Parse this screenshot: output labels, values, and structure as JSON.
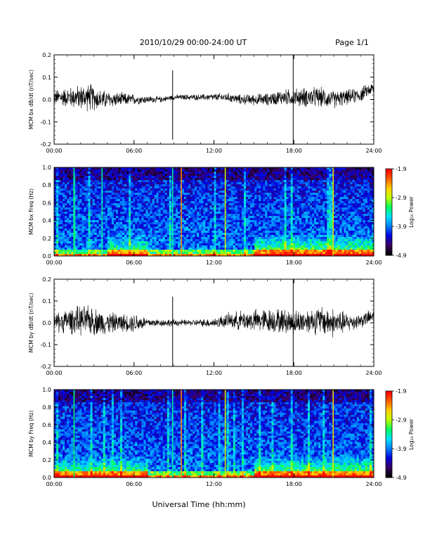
{
  "header": {
    "title": "2010/10/29  00:00-24:00 UT",
    "page_label": "Page 1/1"
  },
  "footer": {
    "xlabel": "Universal Time (hh:mm)"
  },
  "colorbar": {
    "label": "Log₁₀ Power",
    "ticks": [
      "-1.9",
      "-2.9",
      "-3.9",
      "-4.9"
    ],
    "tick_values": [
      -1.9,
      -2.9,
      -3.9,
      -4.9
    ],
    "range": [
      -4.9,
      -1.9
    ],
    "colormap": [
      "#000000",
      "#3a0066",
      "#0000dd",
      "#0080ff",
      "#00e0ff",
      "#00ff60",
      "#c0ff00",
      "#ffd000",
      "#ff6000",
      "#ff0000"
    ]
  },
  "chart_data": [
    {
      "type": "line",
      "name": "bx-waveform",
      "ylabel": "MCM bx dB/dt (nT/sec)",
      "xlim": [
        0,
        24
      ],
      "ylim": [
        -0.2,
        0.2
      ],
      "xticks": [
        "00:00",
        "06:00",
        "12:00",
        "18:00",
        "24:00"
      ],
      "yticks": [
        "0.2",
        "0.1",
        "0.0",
        "-0.1",
        "-0.2"
      ],
      "envelope": {
        "x": [
          0,
          1,
          2,
          2.8,
          3.5,
          4.5,
          5.5,
          6.2,
          7,
          8,
          9,
          10,
          11,
          12,
          13,
          14,
          15,
          16,
          17,
          18,
          19,
          20,
          21,
          22,
          23,
          23.5,
          24
        ],
        "amplitude": [
          0.03,
          0.04,
          0.05,
          0.055,
          0.04,
          0.03,
          0.025,
          0.02,
          0.015,
          0.012,
          0.01,
          0.012,
          0.012,
          0.015,
          0.018,
          0.02,
          0.022,
          0.025,
          0.03,
          0.035,
          0.04,
          0.04,
          0.035,
          0.03,
          0.03,
          0.025,
          0.025
        ],
        "offset": [
          0.01,
          0.01,
          0.01,
          0.01,
          0.0,
          0.0,
          0.0,
          0.0,
          0.0,
          0.0,
          0.01,
          0.01,
          0.01,
          0.01,
          0.01,
          0.0,
          0.0,
          0.0,
          0.01,
          0.01,
          0.01,
          0.01,
          0.0,
          0.01,
          0.02,
          0.04,
          0.05
        ]
      },
      "spikes": [
        {
          "x": 8.9,
          "ymin": -0.18,
          "ymax": 0.13
        },
        {
          "x": 17.95,
          "ymin": -0.2,
          "ymax": 0.2
        }
      ]
    },
    {
      "type": "heatmap",
      "name": "bx-spectrogram",
      "ylabel": "MCM bx Freq (Hz)",
      "xlim": [
        0,
        24
      ],
      "ylim": [
        0,
        1.0
      ],
      "xticks": [
        "00:00",
        "06:00",
        "12:00",
        "18:00",
        "24:00"
      ],
      "yticks": [
        "1.0",
        "0.8",
        "0.6",
        "0.4",
        "0.2",
        "0.0"
      ],
      "bright_lines": [
        {
          "x": 1.5,
          "level": 0.55
        },
        {
          "x": 3.6,
          "level": 0.5
        },
        {
          "x": 8.9,
          "level": 0.5
        },
        {
          "x": 9.55,
          "level": 0.85
        },
        {
          "x": 12.85,
          "level": 0.7
        },
        {
          "x": 20.95,
          "level": 0.75
        }
      ],
      "low_freq_boost_windows": [
        {
          "x0": 15,
          "x1": 24,
          "level": 0.55
        },
        {
          "x0": 4,
          "x1": 7,
          "level": 0.45
        }
      ]
    },
    {
      "type": "line",
      "name": "by-waveform",
      "ylabel": "MCM by dB/dt (nT/sec)",
      "xlim": [
        0,
        24
      ],
      "ylim": [
        -0.2,
        0.2
      ],
      "xticks": [
        "00:00",
        "06:00",
        "12:00",
        "18:00",
        "24:00"
      ],
      "yticks": [
        "0.2",
        "0.1",
        "0.0",
        "-0.1",
        "-0.2"
      ],
      "envelope": {
        "x": [
          0,
          1,
          2,
          2.8,
          3.5,
          4.5,
          5.5,
          6.2,
          7,
          8,
          9,
          10,
          11,
          12,
          13,
          14,
          15,
          16,
          17,
          18,
          19,
          20,
          21,
          22,
          23,
          24
        ],
        "amplitude": [
          0.04,
          0.05,
          0.06,
          0.06,
          0.05,
          0.04,
          0.035,
          0.04,
          0.02,
          0.015,
          0.015,
          0.012,
          0.015,
          0.02,
          0.03,
          0.04,
          0.045,
          0.05,
          0.05,
          0.05,
          0.05,
          0.06,
          0.06,
          0.04,
          0.03,
          0.03
        ],
        "offset": [
          0.0,
          0.01,
          0.01,
          0.01,
          0.0,
          0.0,
          0.0,
          0.0,
          0.0,
          0.0,
          0.0,
          0.0,
          0.0,
          0.0,
          0.01,
          0.01,
          0.01,
          0.01,
          0.01,
          0.0,
          0.01,
          0.01,
          0.0,
          0.0,
          0.01,
          0.03
        ]
      },
      "spikes": [
        {
          "x": 8.9,
          "ymin": -0.2,
          "ymax": 0.12
        },
        {
          "x": 17.95,
          "ymin": -0.2,
          "ymax": 0.2
        }
      ]
    },
    {
      "type": "heatmap",
      "name": "by-spectrogram",
      "ylabel": "MCM by Freq (Hz)",
      "xlim": [
        0,
        24
      ],
      "ylim": [
        0,
        1.0
      ],
      "xticks": [
        "00:00",
        "06:00",
        "12:00",
        "18:00",
        "24:00"
      ],
      "yticks": [
        "1.0",
        "0.8",
        "0.6",
        "0.4",
        "0.2",
        "0.0"
      ],
      "bright_lines": [
        {
          "x": 1.5,
          "level": 0.55
        },
        {
          "x": 8.9,
          "level": 0.5
        },
        {
          "x": 9.55,
          "level": 0.85
        },
        {
          "x": 12.85,
          "level": 0.7
        },
        {
          "x": 20.95,
          "level": 0.75
        }
      ],
      "low_freq_boost_windows": [
        {
          "x0": 15,
          "x1": 24,
          "level": 0.55
        },
        {
          "x0": 0,
          "x1": 7,
          "level": 0.5
        }
      ]
    }
  ]
}
